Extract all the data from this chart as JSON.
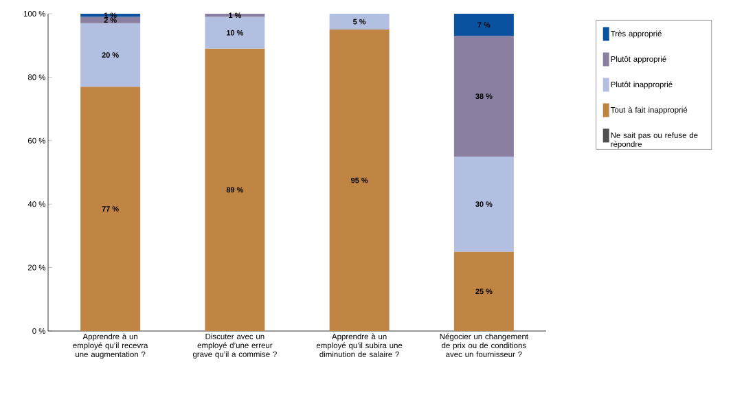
{
  "chart_data": {
    "type": "bar",
    "stacked": true,
    "categories": [
      "Apprendre à un employé qu’il recevra une augmentation ?",
      "Discuter avec un employé d’une erreur grave qu’il a commise ?",
      "Apprendre à un employé qu’il subira une diminution de salaire ?",
      "Négocier un changement de prix ou de conditions avec un fournisseur ?"
    ],
    "series": [
      {
        "name": "Ne sait pas ou refuse de répondre",
        "color": "#505050",
        "values": [
          null,
          null,
          null,
          null
        ]
      },
      {
        "name": "Tout à fait inapproprié",
        "color": "#c08444",
        "values": [
          77,
          89,
          95,
          25
        ],
        "value_labels": [
          "77 %",
          "89 %",
          "95 %",
          "25 %"
        ]
      },
      {
        "name": "Plutôt inapproprié",
        "color": "#b3bfe0",
        "values": [
          20,
          10,
          5,
          30
        ],
        "value_labels": [
          "20 %",
          "10 %",
          "5 %",
          "30 %"
        ]
      },
      {
        "name": "Plutôt approprié",
        "color": "#8a7fa0",
        "values": [
          2,
          1,
          null,
          38
        ],
        "value_labels": [
          "2 %",
          "1 %",
          null,
          "38 %"
        ]
      },
      {
        "name": "Très approprié",
        "color": "#0a52a0",
        "values": [
          1,
          null,
          null,
          7
        ],
        "value_labels": [
          "1 %",
          null,
          null,
          "7 %"
        ]
      }
    ],
    "ylim": [
      0,
      100
    ],
    "yticks": [
      {
        "value": 0,
        "label": "0 %"
      },
      {
        "value": 20,
        "label": "20 %"
      },
      {
        "value": 40,
        "label": "40 %"
      },
      {
        "value": 60,
        "label": "60 %"
      },
      {
        "value": 80,
        "label": "80 %"
      },
      {
        "value": 100,
        "label": "100 %"
      }
    ],
    "grid": false,
    "legend": "right"
  }
}
